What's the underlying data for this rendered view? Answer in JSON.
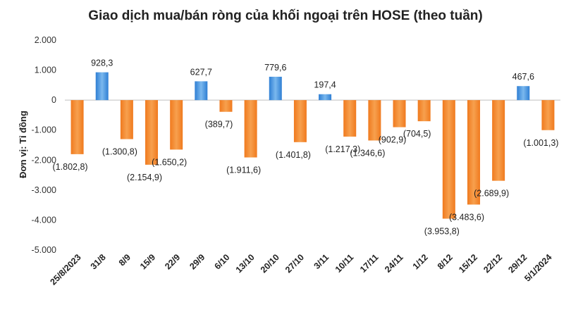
{
  "chart_data": {
    "type": "bar",
    "title": "Giao dịch mua/bán ròng của khối ngoại trên HOSE (theo tuần)",
    "xlabel": "",
    "ylabel": "Đơn vị: Tỉ đồng",
    "ylim": [
      -5000,
      2000
    ],
    "yticks": [
      2000,
      1000,
      0,
      -1000,
      -2000,
      -3000,
      -4000,
      -5000
    ],
    "ytick_labels": [
      "2.000",
      "1.000",
      "0",
      "-1.000",
      "-2.000",
      "-3.000",
      "-4.000",
      "-5.000"
    ],
    "grid": false,
    "legend": "none",
    "categories": [
      "25/8/2023",
      "31/8",
      "8/9",
      "15/9",
      "22/9",
      "29/9",
      "6/10",
      "13/10",
      "20/10",
      "27/10",
      "3/11",
      "10/11",
      "17/11",
      "24/11",
      "1/12",
      "8/12",
      "15/12",
      "22/12",
      "29/12",
      "5/1/2024"
    ],
    "values": [
      -1802.8,
      928.3,
      -1300.8,
      -2154.9,
      -1650.2,
      627.7,
      -389.7,
      -1911.6,
      779.6,
      -1401.8,
      197.4,
      -1217.3,
      -1346.6,
      -902.9,
      -704.5,
      -3953.8,
      -3483.6,
      -2689.9,
      467.6,
      -1001.3
    ],
    "data_labels": [
      "(1.802,8)",
      "928,3",
      "(1.300,8)",
      "(2.154,9)",
      "(1.650,2)",
      "627,7",
      "(389,7)",
      "(1.911,6)",
      "779,6",
      "(1.401,8)",
      "197,4",
      "(1.217,3)",
      "(1.346,6)",
      "(902,9)",
      "(704,5)",
      "(3.953,8)",
      "(3.483,6)",
      "(2.689,9)",
      "467,6",
      "(1.001,3)"
    ],
    "colors": {
      "positive": "#4a90d9",
      "negative": "#f0882e",
      "axis": "#bfbfbf"
    }
  }
}
